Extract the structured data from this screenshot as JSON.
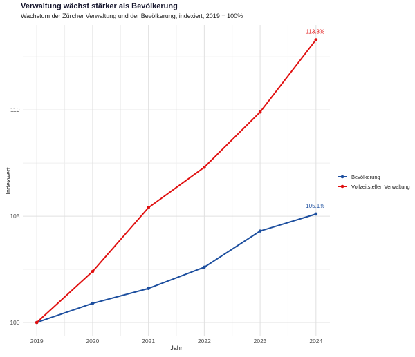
{
  "colors": {
    "bevoelkerung": "#1d4f9f",
    "verwaltung": "#e01010",
    "grid_major": "#e0e0e0",
    "grid_minor": "#efefef",
    "axis_text": "#4d4d4d",
    "title_text": "#14142b",
    "body_text": "#1a1a1a"
  },
  "chart_data": {
    "type": "line",
    "title": "Verwaltung wächst stärker als Bevölkerung",
    "subtitle": "Wachstum der Zürcher Verwaltung und der Bevölkerung, indexiert, 2019 = 100%",
    "xlabel": "Jahr",
    "ylabel": "Indexwert",
    "x": [
      2019,
      2020,
      2021,
      2022,
      2023,
      2024
    ],
    "series": [
      {
        "name": "Bevölkerung",
        "color_key": "bevoelkerung",
        "values": [
          100,
          100.9,
          101.6,
          102.6,
          104.3,
          105.1
        ],
        "end_label": "105.1%"
      },
      {
        "name": "Vollzeitstellen Verwaltung",
        "color_key": "verwaltung",
        "values": [
          100,
          102.4,
          105.4,
          107.3,
          109.9,
          113.3
        ],
        "end_label": "113.3%"
      }
    ],
    "x_ticks": [
      2019,
      2020,
      2021,
      2022,
      2023,
      2024
    ],
    "x_minor": [
      2019.5,
      2020.5,
      2021.5,
      2022.5,
      2023.5
    ],
    "y_ticks": [
      100,
      105,
      110
    ],
    "y_minor": [
      102.5,
      107.5,
      112.5
    ],
    "xlim": [
      2018.75,
      2024.25
    ],
    "ylim": [
      99.35,
      114.0
    ],
    "grid": true,
    "legend_position": "right"
  }
}
